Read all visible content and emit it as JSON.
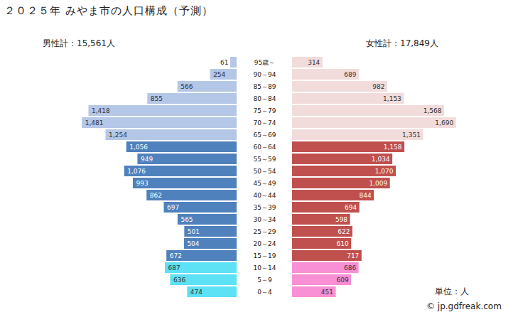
{
  "chart_data": {
    "type": "bar",
    "orientation": "horizontal",
    "title": "２０２５年 みやま市の人口構成（予測）",
    "categories": [
      "95歳～",
      "90～94",
      "85～89",
      "80～84",
      "75～79",
      "70～74",
      "65～69",
      "60～64",
      "55～59",
      "50～54",
      "45～49",
      "40～44",
      "35～39",
      "30～34",
      "25～29",
      "20～24",
      "15～19",
      "10～14",
      "5～9",
      "0～4"
    ],
    "series": [
      {
        "name": "男性計：15,561人",
        "values": [
          61,
          254,
          566,
          855,
          1418,
          1481,
          1254,
          1056,
          949,
          1076,
          993,
          862,
          697,
          565,
          501,
          504,
          672,
          687,
          636,
          474
        ],
        "value_labels": [
          "61",
          "254",
          "566",
          "855",
          "1,418",
          "1,481",
          "1,254",
          "1,056",
          "949",
          "1,076",
          "993",
          "862",
          "697",
          "565",
          "501",
          "504",
          "672",
          "687",
          "636",
          "474"
        ],
        "colors": [
          "#b4c7e7",
          "#b4c7e7",
          "#b4c7e7",
          "#b4c7e7",
          "#b4c7e7",
          "#b4c7e7",
          "#b4c7e7",
          "#4f81bd",
          "#4f81bd",
          "#4f81bd",
          "#4f81bd",
          "#4f81bd",
          "#4f81bd",
          "#4f81bd",
          "#4f81bd",
          "#4f81bd",
          "#4f81bd",
          "#5ce1f5",
          "#5ce1f5",
          "#5ce1f5"
        ]
      },
      {
        "name": "女性計：17,849人",
        "values": [
          314,
          689,
          982,
          1153,
          1568,
          1690,
          1351,
          1158,
          1034,
          1070,
          1009,
          844,
          694,
          598,
          622,
          610,
          717,
          686,
          609,
          451
        ],
        "value_labels": [
          "314",
          "689",
          "982",
          "1,153",
          "1,568",
          "1,690",
          "1,351",
          "1,158",
          "1,034",
          "1,070",
          "1,009",
          "844",
          "694",
          "598",
          "622",
          "610",
          "717",
          "686",
          "609",
          "451"
        ],
        "colors": [
          "#f2dcdb",
          "#f2dcdb",
          "#f2dcdb",
          "#f2dcdb",
          "#f2dcdb",
          "#f2dcdb",
          "#f2dcdb",
          "#c0504d",
          "#c0504d",
          "#c0504d",
          "#c0504d",
          "#c0504d",
          "#c0504d",
          "#c0504d",
          "#c0504d",
          "#c0504d",
          "#c0504d",
          "#f98fd5",
          "#f98fd5",
          "#f98fd5"
        ]
      }
    ],
    "xlim": [
      0,
      1700
    ],
    "data_labels": true,
    "tick_labels": "y",
    "annotations": [
      "単位：人",
      "© jp.gdfreak.com"
    ]
  }
}
